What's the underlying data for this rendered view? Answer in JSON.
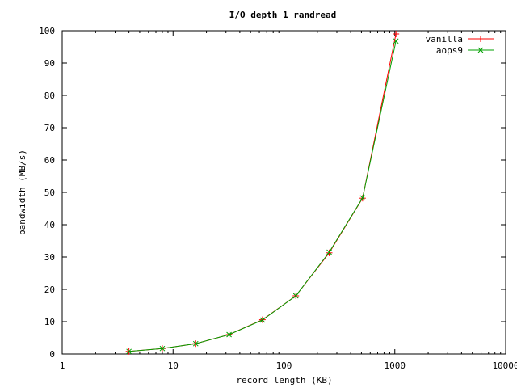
{
  "chart_data": {
    "type": "line",
    "title": "I/O depth 1 randread",
    "xlabel": "record length (KB)",
    "ylabel": "bandwidth (MB/s)",
    "x_scale": "log",
    "xlim": [
      1,
      10000
    ],
    "ylim": [
      0,
      100
    ],
    "x_ticks": [
      {
        "value": 1,
        "label": "1"
      },
      {
        "value": 10,
        "label": "10"
      },
      {
        "value": 100,
        "label": "100"
      },
      {
        "value": 1000,
        "label": "1000"
      },
      {
        "value": 10000,
        "label": "10000"
      }
    ],
    "y_ticks": [
      0,
      10,
      20,
      30,
      40,
      50,
      60,
      70,
      80,
      90,
      100
    ],
    "grid": false,
    "legend_position": "top-right",
    "x": [
      4,
      8,
      16,
      32,
      64,
      128,
      256,
      512,
      1024
    ],
    "series": [
      {
        "name": "vanilla",
        "color": "#ff0000",
        "marker": "plus",
        "values": [
          0.8,
          1.7,
          3.2,
          6.0,
          10.6,
          18.0,
          31.3,
          48.2,
          99.0
        ]
      },
      {
        "name": "aops9",
        "color": "#00a000",
        "marker": "cross",
        "values": [
          0.8,
          1.7,
          3.2,
          6.0,
          10.5,
          18.0,
          31.5,
          48.3,
          96.8
        ]
      }
    ]
  }
}
